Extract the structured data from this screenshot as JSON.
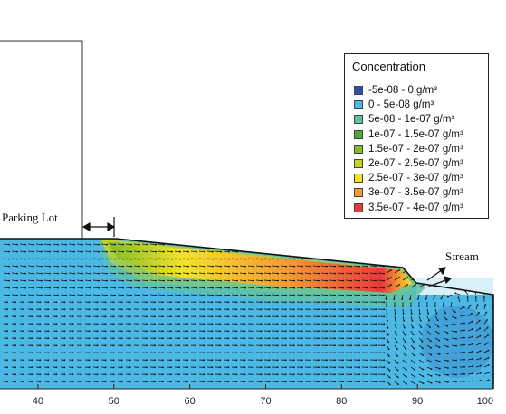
{
  "x_axis": {
    "min": 35,
    "max": 100,
    "ticks": [
      "40",
      "50",
      "60",
      "70",
      "80",
      "90",
      "100"
    ]
  },
  "labels": {
    "parking_lot": "Parking Lot",
    "stream": "Stream"
  },
  "legend": {
    "title": "Concentration",
    "items": [
      {
        "label": "-5e-08 - 0 g/m³",
        "color": "#2e4fa8"
      },
      {
        "label": "0 - 5e-08 g/m³",
        "color": "#4bb8e6"
      },
      {
        "label": "5e-08 - 1e-07 g/m³",
        "color": "#5fc2a8"
      },
      {
        "label": "1e-07 - 1.5e-07 g/m³",
        "color": "#4fa63a"
      },
      {
        "label": "1.5e-07 - 2e-07 g/m³",
        "color": "#7cbf2a"
      },
      {
        "label": "2e-07 - 2.5e-07 g/m³",
        "color": "#c5d324"
      },
      {
        "label": "2.5e-07 - 3e-07 g/m³",
        "color": "#f4e12c"
      },
      {
        "label": "3e-07 - 3.5e-07 g/m³",
        "color": "#f39a34"
      },
      {
        "label": "3.5e-07 - 4e-07 g/m³",
        "color": "#e8393a"
      }
    ]
  }
}
